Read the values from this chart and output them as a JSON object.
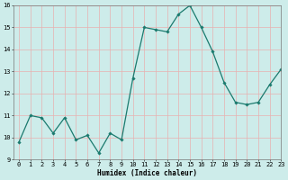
{
  "x": [
    0,
    1,
    2,
    3,
    4,
    5,
    6,
    7,
    8,
    9,
    10,
    11,
    12,
    13,
    14,
    15,
    16,
    17,
    18,
    19,
    20,
    21,
    22,
    23
  ],
  "y": [
    9.8,
    11.0,
    10.9,
    10.2,
    10.9,
    9.9,
    10.1,
    9.3,
    10.2,
    9.9,
    12.7,
    15.0,
    14.9,
    14.8,
    15.6,
    16.0,
    15.0,
    13.9,
    12.5,
    11.6,
    11.5,
    11.6,
    12.4,
    13.1
  ],
  "line_color": "#1a7a6e",
  "bg_color": "#cdecea",
  "grid_color": "#e8b0b0",
  "xlabel": "Humidex (Indice chaleur)",
  "ylim": [
    9,
    16
  ],
  "xlim": [
    -0.5,
    23
  ],
  "yticks": [
    9,
    10,
    11,
    12,
    13,
    14,
    15,
    16
  ],
  "xticks": [
    0,
    1,
    2,
    3,
    4,
    5,
    6,
    7,
    8,
    9,
    10,
    11,
    12,
    13,
    14,
    15,
    16,
    17,
    18,
    19,
    20,
    21,
    22,
    23
  ],
  "label_fontsize": 5.5,
  "tick_fontsize": 5.0
}
